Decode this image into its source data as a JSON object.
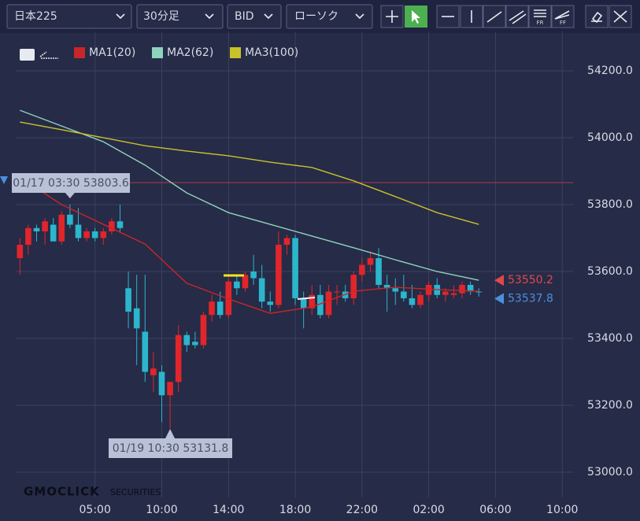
{
  "toolbar": {
    "selects": [
      "日本225",
      "30分足",
      "BID",
      "ローソク"
    ],
    "buttons": [
      "FR",
      "FF"
    ]
  },
  "logo": {
    "brand": "GMOCLICK",
    "sub": "SECURITIES"
  },
  "chart_data": {
    "type": "candlestick",
    "open": [
      53640,
      53680,
      53730,
      53720,
      53740,
      53690,
      53770,
      53740,
      53700,
      53720,
      53700,
      53720,
      53750,
      53550,
      53490,
      53420,
      53290,
      53300,
      53230,
      53270,
      53410,
      53390,
      53380,
      53470,
      53510,
      53470,
      53570,
      53550,
      53600,
      53580,
      53510,
      53500,
      53680,
      53700,
      53520,
      53490,
      53530,
      53470,
      53540,
      53540,
      53520,
      53590,
      53620,
      53640,
      53560,
      53550,
      53540,
      53520,
      53500,
      53530,
      53560,
      53530,
      53530,
      53535,
      53560,
      53540
    ],
    "high": [
      53700,
      53740,
      53740,
      53760,
      53760,
      53780,
      53800,
      53790,
      53730,
      53730,
      53730,
      53760,
      53800,
      53600,
      53590,
      53590,
      53360,
      53320,
      53260,
      53440,
      53420,
      53420,
      53480,
      53530,
      53540,
      53580,
      53590,
      53600,
      53650,
      53620,
      53540,
      53720,
      53710,
      53710,
      53540,
      53560,
      53560,
      53560,
      53560,
      53560,
      53600,
      53640,
      53660,
      53670,
      53590,
      53580,
      53590,
      53560,
      53540,
      53570,
      53580,
      53550,
      53560,
      53570,
      53570,
      53550
    ],
    "low": [
      53590,
      53650,
      53690,
      53680,
      53690,
      53680,
      53730,
      53690,
      53690,
      53690,
      53680,
      53710,
      53720,
      53430,
      53320,
      53270,
      53240,
      53150,
      53131.8,
      53240,
      53360,
      53370,
      53370,
      53450,
      53460,
      53460,
      53530,
      53540,
      53560,
      53490,
      53480,
      53490,
      53650,
      53500,
      53430,
      53470,
      53460,
      53460,
      53500,
      53510,
      53500,
      53570,
      53600,
      53550,
      53480,
      53500,
      53510,
      53490,
      53490,
      53510,
      53520,
      53510,
      53520,
      53520,
      53530,
      53525
    ],
    "close": [
      53680,
      53730,
      53720,
      53750,
      53690,
      53770,
      53740,
      53700,
      53720,
      53700,
      53720,
      53750,
      53730,
      53480,
      53430,
      53300,
      53310,
      53230,
      53270,
      53410,
      53380,
      53380,
      53470,
      53510,
      53470,
      53570,
      53550,
      53590,
      53580,
      53510,
      53500,
      53680,
      53700,
      53520,
      53490,
      53530,
      53470,
      53540,
      53540,
      53520,
      53590,
      53620,
      53640,
      53560,
      53550,
      53540,
      53520,
      53500,
      53530,
      53560,
      53530,
      53540,
      53535,
      53560,
      53540,
      53537.8
    ],
    "up_color": "#e0262b",
    "down_color": "#2bb6cc",
    "ma_x": [
      0,
      5,
      10,
      15,
      20,
      25,
      30,
      35,
      40,
      45,
      50,
      55
    ],
    "series": [
      {
        "name": "MA1(20)",
        "color": "#c9252b",
        "values": [
          53882,
          53800,
          53741,
          53682,
          53565,
          53518,
          53475,
          53494,
          53541,
          53553,
          53546,
          53541
        ]
      },
      {
        "name": "MA2(62)",
        "color": "#8fd3bd",
        "values": [
          54082,
          54035,
          53988,
          53918,
          53835,
          53776,
          53741,
          53706,
          53671,
          53635,
          53600,
          53574
        ]
      },
      {
        "name": "MA3(100)",
        "color": "#c9c22a",
        "values": [
          54047,
          54024,
          54000,
          53976,
          53960,
          53946,
          53927,
          53911,
          53871,
          53824,
          53776,
          53741
        ]
      }
    ],
    "reference_line": 53866,
    "annotations": [
      {
        "text": "01/17 03:30 53803.6",
        "x": 6
      },
      {
        "text": "01/19 10:30 53131.8",
        "x": 18
      }
    ],
    "last_prices": [
      {
        "value": 53550.2,
        "label": "53550.2",
        "color": "#e0484c"
      },
      {
        "value": 53537.8,
        "label": "53537.8",
        "color": "#4a8fe0"
      }
    ],
    "xlim": [
      -0.5,
      66.3
    ],
    "xticks": [
      {
        "value": 9,
        "label": "05:00"
      },
      {
        "value": 17,
        "label": "10:00"
      },
      {
        "value": 25,
        "label": "14:00"
      },
      {
        "value": 33,
        "label": "18:00"
      },
      {
        "value": 41,
        "label": "22:00"
      },
      {
        "value": 49,
        "label": "02:00"
      },
      {
        "value": 57,
        "label": "06:00"
      },
      {
        "value": 65,
        "label": "10:00"
      }
    ],
    "ylim": [
      52941.2,
      54317.6
    ],
    "yticks": [
      {
        "value": 53000,
        "label": "53000.0"
      },
      {
        "value": 53200,
        "label": "53200.0"
      },
      {
        "value": 53400,
        "label": "53400.0"
      },
      {
        "value": 53600,
        "label": "53600.0"
      },
      {
        "value": 53800,
        "label": "53800.0"
      },
      {
        "value": 54000,
        "label": "54000.0"
      },
      {
        "value": 54200,
        "label": "54200.0"
      }
    ],
    "grid": true
  }
}
